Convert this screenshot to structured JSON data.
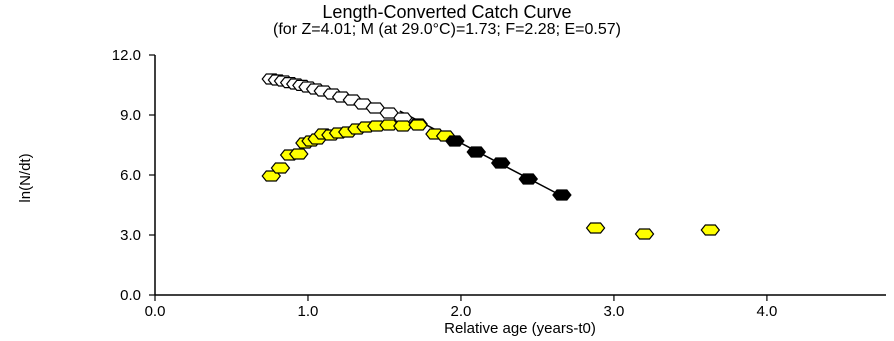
{
  "chart_data": {
    "type": "scatter",
    "title": "Length-Converted Catch Curve",
    "subtitle": "(for Z=4.01; M (at 29.0°C)=1.73; F=2.28; E=0.57)",
    "xlabel": "Relative age (years-t0)",
    "ylabel": "ln(N/dt)",
    "xlim": [
      0.0,
      4.7
    ],
    "ylim": [
      0.0,
      12.0
    ],
    "x_ticks": [
      0.0,
      1.0,
      2.0,
      3.0,
      4.0
    ],
    "x_tick_labels": [
      "0.0",
      "1.0",
      "2.0",
      "3.0",
      "4.0"
    ],
    "y_ticks": [
      0.0,
      3.0,
      6.0,
      9.0,
      12.0
    ],
    "y_tick_labels": [
      "0.0",
      "3.0",
      "6.0",
      "9.0",
      "12.0"
    ],
    "grid": false,
    "legend": "none",
    "colors": {
      "yellow_fill": "#ffff00",
      "black_fill": "#000000",
      "open_fill": "#ffffff",
      "stroke": "#000000"
    },
    "series": [
      {
        "style": "open",
        "points": [
          [
            0.76,
            10.8
          ],
          [
            0.8,
            10.75
          ],
          [
            0.84,
            10.7
          ],
          [
            0.88,
            10.62
          ],
          [
            0.92,
            10.55
          ],
          [
            0.96,
            10.48
          ],
          [
            1.0,
            10.4
          ],
          [
            1.05,
            10.3
          ],
          [
            1.1,
            10.2
          ],
          [
            1.16,
            10.05
          ],
          [
            1.22,
            9.9
          ],
          [
            1.29,
            9.75
          ],
          [
            1.36,
            9.55
          ],
          [
            1.44,
            9.35
          ],
          [
            1.53,
            9.1
          ],
          [
            1.62,
            8.85
          ],
          [
            1.72,
            8.55
          ]
        ]
      },
      {
        "style": "yellow",
        "points": [
          [
            0.76,
            5.95
          ],
          [
            0.82,
            6.35
          ],
          [
            0.88,
            7.0
          ],
          [
            0.94,
            7.05
          ],
          [
            0.98,
            7.6
          ],
          [
            1.02,
            7.7
          ],
          [
            1.06,
            7.8
          ],
          [
            1.1,
            8.05
          ],
          [
            1.15,
            8.0
          ],
          [
            1.2,
            8.1
          ],
          [
            1.26,
            8.15
          ],
          [
            1.32,
            8.3
          ],
          [
            1.38,
            8.4
          ],
          [
            1.45,
            8.45
          ],
          [
            1.53,
            8.5
          ],
          [
            1.62,
            8.45
          ],
          [
            1.72,
            8.5
          ],
          [
            1.83,
            8.05
          ],
          [
            1.9,
            7.95
          ],
          [
            2.88,
            3.35
          ],
          [
            3.2,
            3.05
          ],
          [
            3.63,
            3.25
          ]
        ]
      },
      {
        "style": "black",
        "points": [
          [
            1.96,
            7.7
          ],
          [
            2.1,
            7.15
          ],
          [
            2.26,
            6.6
          ],
          [
            2.44,
            5.8
          ],
          [
            2.66,
            5.0
          ]
        ]
      }
    ],
    "regression_line": {
      "x": [
        1.6,
        2.66
      ],
      "y": [
        9.2,
        4.95
      ]
    }
  }
}
